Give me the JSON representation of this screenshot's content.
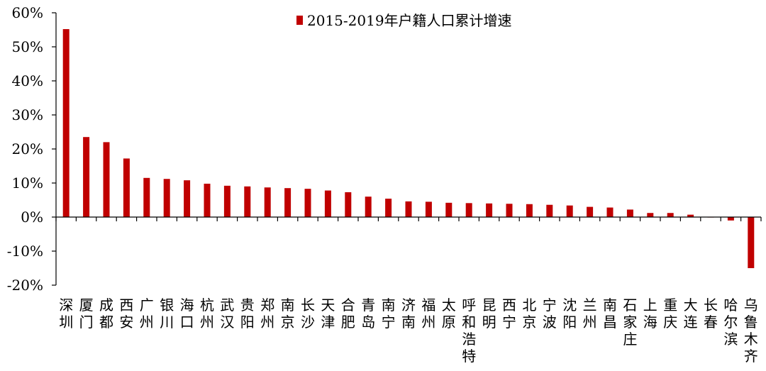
{
  "chart_data": {
    "type": "bar",
    "title": "",
    "xlabel": "",
    "ylabel": "",
    "ylim": [
      -20,
      60
    ],
    "yticks": [
      60,
      50,
      40,
      30,
      20,
      10,
      0,
      -10,
      -20
    ],
    "ytick_labels": [
      "60%",
      "50%",
      "40%",
      "30%",
      "20%",
      "10%",
      "0%",
      "-10%",
      "-20%"
    ],
    "legend_position": "top",
    "grid": false,
    "bar_color": "#c00000",
    "categories": [
      "深圳",
      "厦门",
      "成都",
      "西安",
      "广州",
      "银川",
      "海口",
      "杭州",
      "武汉",
      "贵阳",
      "郑州",
      "南京",
      "长沙",
      "天津",
      "合肥",
      "青岛",
      "南宁",
      "济南",
      "福州",
      "太原",
      "呼和浩特",
      "昆明",
      "西宁",
      "北京",
      "宁波",
      "沈阳",
      "兰州",
      "南昌",
      "石家庄",
      "上海",
      "重庆",
      "大连",
      "长春",
      "哈尔滨",
      "乌鲁木齐"
    ],
    "series": [
      {
        "name": "2015-2019年户籍人口累计增速",
        "values": [
          55.2,
          23.5,
          22.0,
          17.2,
          11.5,
          11.2,
          10.8,
          9.8,
          9.2,
          9.0,
          8.7,
          8.5,
          8.3,
          7.8,
          7.3,
          6.0,
          5.4,
          4.6,
          4.5,
          4.2,
          4.1,
          4.0,
          3.9,
          3.8,
          3.6,
          3.4,
          3.0,
          2.8,
          2.2,
          1.2,
          1.2,
          0.7,
          -0.1,
          -1.0,
          -15.0
        ]
      }
    ]
  }
}
